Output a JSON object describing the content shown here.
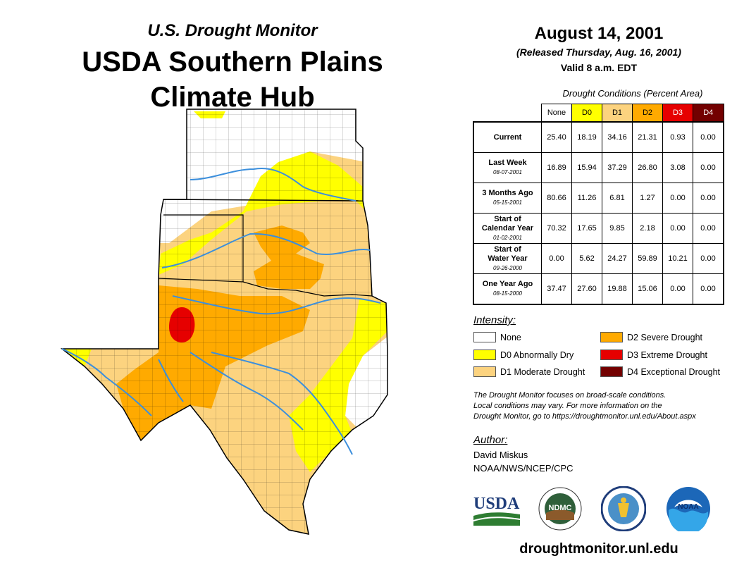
{
  "header": {
    "brand": "U.S. Drought Monitor",
    "hub_line1": "USDA Southern Plains",
    "hub_line2": "Climate Hub",
    "date": "August 14, 2001",
    "released": "(Released Thursday, Aug. 16, 2001)",
    "valid": "Valid 8 a.m. EDT"
  },
  "table": {
    "caption": "Drought Conditions (Percent Area)",
    "columns": [
      "None",
      "D0",
      "D1",
      "D2",
      "D3",
      "D4"
    ],
    "rows": [
      {
        "label": "Current",
        "label2": "",
        "date": "",
        "values": [
          "25.40",
          "18.19",
          "34.16",
          "21.31",
          "0.93",
          "0.00"
        ]
      },
      {
        "label": "Last Week",
        "label2": "",
        "date": "08-07-2001",
        "values": [
          "16.89",
          "15.94",
          "37.29",
          "26.80",
          "3.08",
          "0.00"
        ]
      },
      {
        "label": "3 Months Ago",
        "label2": "",
        "date": "05-15-2001",
        "values": [
          "80.66",
          "11.26",
          "6.81",
          "1.27",
          "0.00",
          "0.00"
        ]
      },
      {
        "label": "Start of",
        "label2": "Calendar Year",
        "date": "01-02-2001",
        "values": [
          "70.32",
          "17.65",
          "9.85",
          "2.18",
          "0.00",
          "0.00"
        ]
      },
      {
        "label": "Start of",
        "label2": "Water Year",
        "date": "09-26-2000",
        "values": [
          "0.00",
          "5.62",
          "24.27",
          "59.89",
          "10.21",
          "0.00"
        ]
      },
      {
        "label": "One Year Ago",
        "label2": "",
        "date": "08-15-2000",
        "values": [
          "37.47",
          "27.60",
          "19.88",
          "15.06",
          "0.00",
          "0.00"
        ]
      }
    ]
  },
  "legend": {
    "title": "Intensity:",
    "items": [
      {
        "label": "None",
        "color": "#ffffff"
      },
      {
        "label": "D0 Abnormally Dry",
        "color": "#ffff00"
      },
      {
        "label": "D1 Moderate Drought",
        "color": "#fcd37f"
      },
      {
        "label": "D2 Severe Drought",
        "color": "#ffaa00"
      },
      {
        "label": "D3 Extreme Drought",
        "color": "#e60000"
      },
      {
        "label": "D4 Exceptional Drought",
        "color": "#730000"
      }
    ]
  },
  "note": {
    "line1": "The Drought Monitor focuses on broad-scale conditions.",
    "line2": "Local conditions may vary. For more information on the",
    "line3": "Drought Monitor, go to https://droughtmonitor.unl.edu/About.aspx"
  },
  "author": {
    "label": "Author:",
    "name": "David Miskus",
    "org": "NOAA/NWS/NCEP/CPC"
  },
  "logos": {
    "usda": "USDA",
    "ndmc": "NDMC",
    "noaa": "NOAA"
  },
  "footer": {
    "url": "droughtmonitor.unl.edu"
  },
  "colors": {
    "none": "#ffffff",
    "d0": "#ffff00",
    "d1": "#fcd37f",
    "d2": "#ffaa00",
    "d3": "#e60000",
    "d4": "#730000",
    "river": "#3c8fdc"
  }
}
